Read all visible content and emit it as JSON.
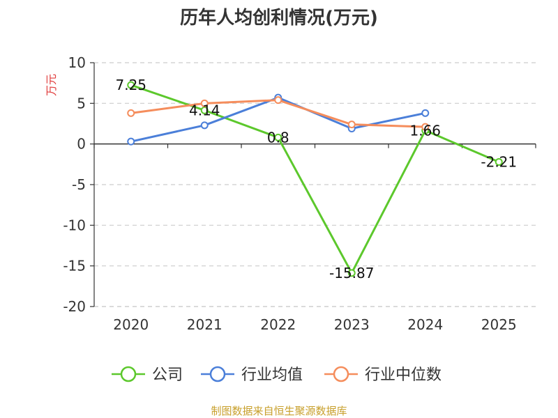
{
  "chart_data": {
    "type": "line",
    "title": "历年人均创利情况(万元)",
    "ylabel": "万元",
    "xlabel": "",
    "categories": [
      "2020",
      "2021",
      "2022",
      "2023",
      "2024",
      "2025"
    ],
    "ylim": [
      -20,
      10
    ],
    "yticks": [
      10,
      5,
      0,
      -5,
      -10,
      -15,
      -20
    ],
    "grid": true,
    "legend_position": "bottom",
    "series": [
      {
        "name": "公司",
        "color": "#5cc82c",
        "values": [
          7.25,
          4.14,
          0.8,
          -15.87,
          1.66,
          -2.21
        ],
        "labels": [
          "7.25",
          "4.14",
          "0.8",
          "-15.87",
          "1.66",
          "-2.21"
        ]
      },
      {
        "name": "行业均值",
        "color": "#4b7fd9",
        "values": [
          0.3,
          2.3,
          5.7,
          1.9,
          3.8,
          null
        ]
      },
      {
        "name": "行业中位数",
        "color": "#f58d5c",
        "values": [
          3.8,
          5.0,
          5.4,
          2.4,
          2.1,
          null
        ]
      }
    ]
  },
  "source": "制图数据来自恒生聚源数据库"
}
